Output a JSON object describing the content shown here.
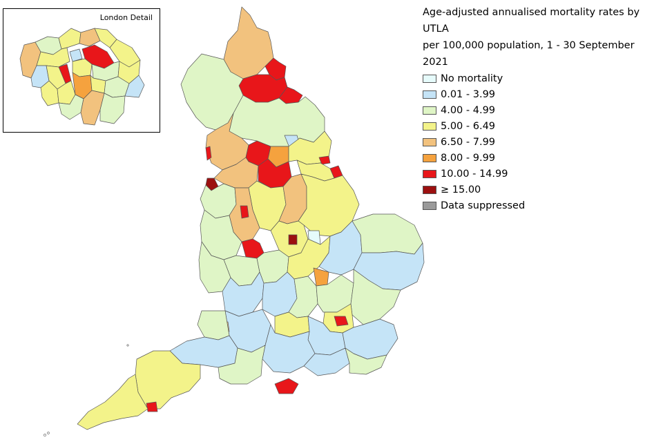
{
  "legend": {
    "title_line1": "Age-adjusted annualised mortality rates by UTLA",
    "title_line2": "per 100,000 population, 1 - 30 September 2021",
    "items": [
      {
        "label": "No mortality",
        "color": "#e6fbfb"
      },
      {
        "label": "0.01 - 3.99",
        "color": "#c5e4f7"
      },
      {
        "label": "4.00 - 4.99",
        "color": "#dff5c6"
      },
      {
        "label": "5.00 - 6.49",
        "color": "#f3f38a"
      },
      {
        "label": "6.50 - 7.99",
        "color": "#f2c27e"
      },
      {
        "label": "8.00 - 9.99",
        "color": "#f5a23e"
      },
      {
        "label": "10.00 - 14.99",
        "color": "#e8161a"
      },
      {
        "label": "≥ 15.00",
        "color": "#9c1010"
      },
      {
        "label": "Data suppressed",
        "color": "#9a9a9a"
      }
    ]
  },
  "inset": {
    "title": "London Detail"
  },
  "colors": {
    "no_mortality": "#e6fbfb",
    "band1": "#c5e4f7",
    "band2": "#dff5c6",
    "band3": "#f3f38a",
    "band4": "#f2c27e",
    "band5": "#f5a23e",
    "band6": "#e8161a",
    "band7": "#9c1010",
    "suppressed": "#9a9a9a",
    "border": "#555555"
  }
}
